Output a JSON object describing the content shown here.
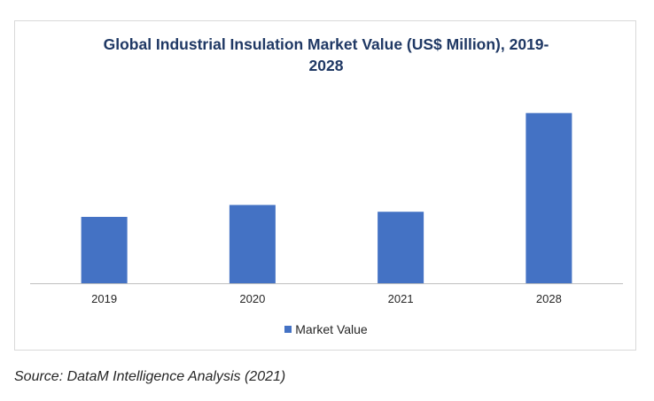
{
  "colors": {
    "bar": "#4472c4",
    "axis": "#bfbfbf",
    "title": "#1f3864"
  },
  "chart_data": {
    "type": "bar",
    "title": "Global Industrial Insulation Market Value (US$ Million), 2019-2028",
    "title_line1": "Global Industrial Insulation Market Value (US$ Million), 2019-",
    "title_line2": "2028",
    "categories": [
      "2019",
      "2020",
      "2021",
      "2028"
    ],
    "series": [
      {
        "name": "Market Value",
        "values": [
          39,
          46,
          42,
          100
        ]
      }
    ],
    "xlabel": "",
    "ylabel": "",
    "ylim": [
      0,
      104
    ],
    "grid": false,
    "legend": "bottom"
  },
  "source": "Source: DataM Intelligence Analysis (2021)"
}
